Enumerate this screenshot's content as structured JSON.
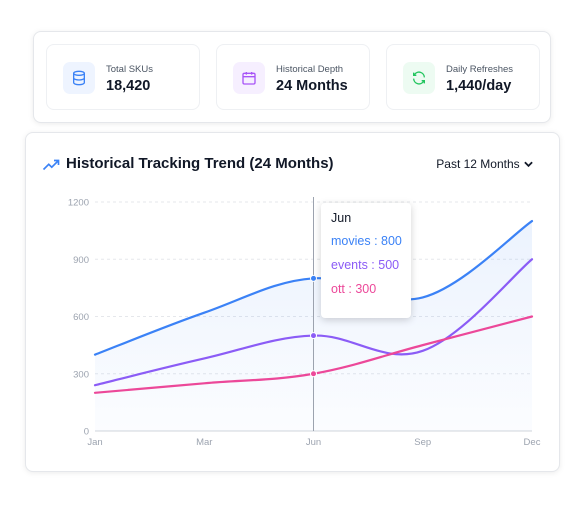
{
  "stats": [
    {
      "label": "Total SKUs",
      "value": "18,420",
      "icon": "database-icon",
      "color": "#3b82f6",
      "bg": "#eef4ff"
    },
    {
      "label": "Historical Depth",
      "value": "24 Months",
      "icon": "calendar-icon",
      "color": "#a855f7",
      "bg": "#f6efff"
    },
    {
      "label": "Daily Refreshes",
      "value": "1,440/day",
      "icon": "refresh-icon",
      "color": "#22c55e",
      "bg": "#edfbf2"
    }
  ],
  "card": {
    "title": "Historical Tracking Trend (24 Months)",
    "range_label": "Past 12 Months"
  },
  "tooltip": {
    "month": "Jun",
    "rows": [
      {
        "text": "movies : 800",
        "color": "#3b82f6"
      },
      {
        "text": "events : 500",
        "color": "#8b5cf6"
      },
      {
        "text": "ott : 300",
        "color": "#ec4899"
      }
    ]
  },
  "chart_data": {
    "type": "line",
    "x": [
      0,
      1,
      2,
      3,
      4,
      5,
      6,
      7,
      8,
      9,
      10,
      11
    ],
    "x_tick_labels": [
      "Jan",
      "Mar",
      "Jun",
      "Sep",
      "Dec"
    ],
    "x_tick_positions": [
      0,
      2.5,
      5,
      7.5,
      10
    ],
    "xlim": [
      0,
      10
    ],
    "ylim": [
      0,
      1200
    ],
    "y_ticks": [
      0,
      300,
      600,
      900,
      1200
    ],
    "grid": true,
    "series": [
      {
        "name": "movies",
        "color": "#3b82f6",
        "x": [
          0,
          2.5,
          5,
          7.5,
          10
        ],
        "values": [
          400,
          620,
          800,
          700,
          1100
        ]
      },
      {
        "name": "events",
        "color": "#8b5cf6",
        "x": [
          0,
          2.5,
          5,
          7.5,
          10
        ],
        "values": [
          240,
          380,
          500,
          420,
          900
        ]
      },
      {
        "name": "ott",
        "color": "#ec4899",
        "x": [
          0,
          2.5,
          5,
          7.5,
          10
        ],
        "values": [
          200,
          250,
          300,
          450,
          600
        ]
      }
    ],
    "highlight_x": 5
  }
}
